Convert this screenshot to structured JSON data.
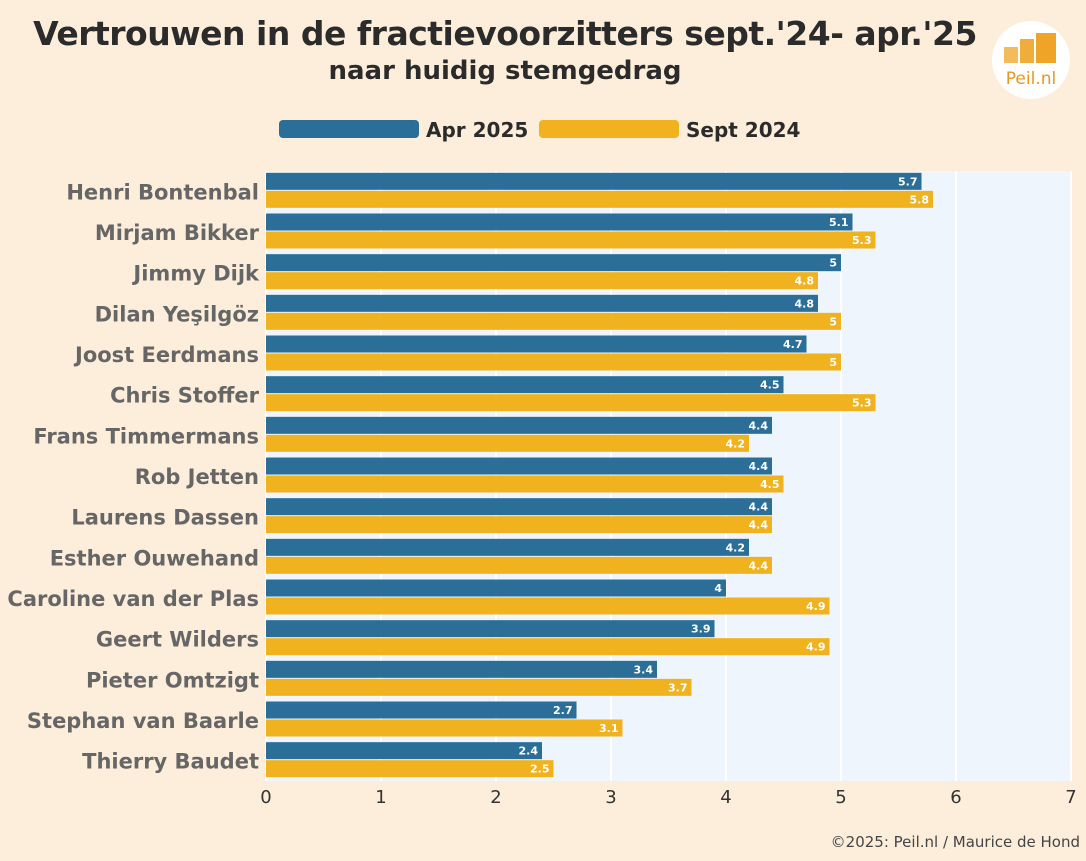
{
  "header": {
    "title": "Vertrouwen in de fractievoorzitters sept.'24- apr.'25",
    "subtitle": "naar huidig stemgedrag"
  },
  "logo": {
    "text": "Peil.nl"
  },
  "footer": {
    "credit": "©2025: Peil.nl / Maurice de Hond"
  },
  "colors": {
    "background": "#fdeedb",
    "plot_background": "#eef5fc",
    "apr2025": "#2b6f99",
    "sept2024": "#f0b31f"
  },
  "chart_data": {
    "type": "bar",
    "orientation": "horizontal",
    "categories": [
      "Henri Bontenbal",
      "Mirjam Bikker",
      "Jimmy Dijk",
      "Dilan Yeşilgöz",
      "Joost Eerdmans",
      "Chris Stoffer",
      "Frans Timmermans",
      "Rob Jetten",
      "Laurens Dassen",
      "Esther Ouwehand",
      "Caroline van der Plas",
      "Geert Wilders",
      "Pieter Omtzigt",
      "Stephan van Baarle",
      "Thierry Baudet"
    ],
    "series": [
      {
        "name": "Apr 2025",
        "color": "#2b6f99",
        "values": [
          5.7,
          5.1,
          5,
          4.8,
          4.7,
          4.5,
          4.4,
          4.4,
          4.4,
          4.2,
          4,
          3.9,
          3.4,
          2.7,
          2.4
        ]
      },
      {
        "name": "Sept 2024",
        "color": "#f0b31f",
        "values": [
          5.8,
          5.3,
          4.8,
          5,
          5,
          5.3,
          4.2,
          4.5,
          4.4,
          4.4,
          4.9,
          4.9,
          3.7,
          3.1,
          2.5
        ]
      }
    ],
    "xlim": [
      0,
      7
    ],
    "xticks": [
      0,
      1,
      2,
      3,
      4,
      5,
      6,
      7
    ],
    "grid": true,
    "legend": "top"
  }
}
